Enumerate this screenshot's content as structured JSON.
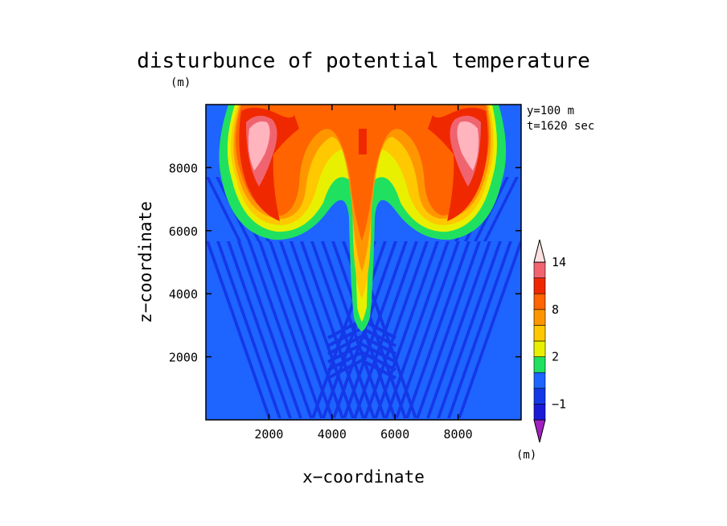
{
  "chart_data": {
    "type": "heatmap",
    "title": "disturbunce of potential temperature",
    "unit_top": "(m)",
    "unit_bottom": "(m)",
    "xlabel": "x−coordinate",
    "ylabel": "z−coordinate",
    "xlim": [
      0,
      10000
    ],
    "ylim": [
      0,
      10000
    ],
    "x_ticks": [
      2000,
      4000,
      6000,
      8000
    ],
    "y_ticks": [
      2000,
      4000,
      6000,
      8000
    ],
    "x_tick_labels": [
      "2000",
      "4000",
      "6000",
      "8000"
    ],
    "y_tick_labels": [
      "2000",
      "4000",
      "6000",
      "8000"
    ],
    "annotations": [
      "y=100 m",
      "t=1620 sec"
    ],
    "colorbar": {
      "levels": [
        -3,
        -2,
        -1,
        0,
        1,
        2,
        4,
        6,
        8,
        10,
        12,
        14,
        16
      ],
      "tick_values": [
        -1,
        2,
        8,
        14
      ],
      "tick_labels": [
        "−1",
        "2",
        "8",
        "14"
      ],
      "colors": [
        "#a020c0",
        "#1a1ad8",
        "#1438e8",
        "#1e64ff",
        "#20e060",
        "#e8f000",
        "#ffc800",
        "#ff9600",
        "#ff6400",
        "#f02800",
        "#f06470",
        "#ffb4be",
        "#ffe0e0"
      ]
    }
  },
  "colors": {
    "background": "#1e64ff",
    "light_blue": "#1438e8"
  }
}
